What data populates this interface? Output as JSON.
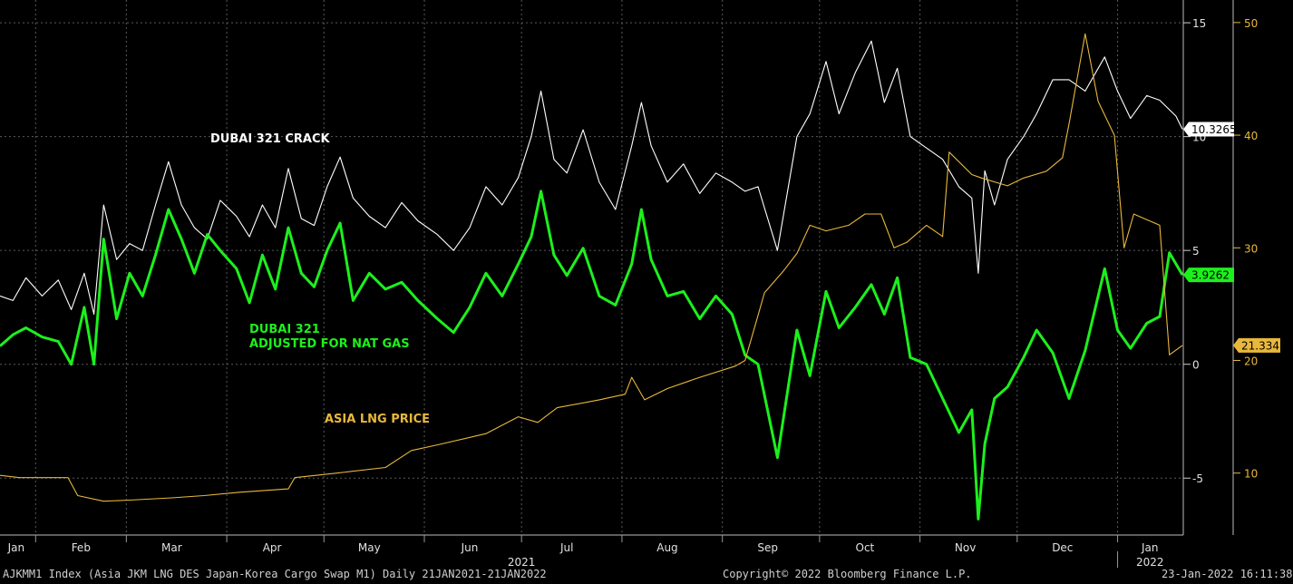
{
  "chart_data": {
    "type": "line",
    "x_months": [
      "Jan",
      "Feb",
      "Mar",
      "Apr",
      "May",
      "Jun",
      "Jul",
      "Aug",
      "Sep",
      "Oct",
      "Nov",
      "Dec",
      "Jan"
    ],
    "x_years": [
      "2021",
      "2022"
    ],
    "x_range": [
      "2021-01-21",
      "2022-01-21"
    ],
    "left_axis": {
      "ticks": [
        -5,
        0,
        5,
        10,
        15
      ],
      "range": [
        -7.5,
        16
      ]
    },
    "right_axis": {
      "ticks": [
        10,
        20,
        30,
        40,
        50
      ],
      "range": [
        4.5,
        52
      ]
    },
    "grid": true,
    "series": [
      {
        "key": "crack",
        "name": "DUBAI 321 CRACK",
        "axis": "left",
        "color": "#ffffff",
        "last_value": "10.3265",
        "points": [
          [
            "2021-01-21",
            3.0
          ],
          [
            "2021-01-25",
            2.8
          ],
          [
            "2021-01-29",
            3.8
          ],
          [
            "2021-02-03",
            3.0
          ],
          [
            "2021-02-08",
            3.7
          ],
          [
            "2021-02-12",
            2.4
          ],
          [
            "2021-02-16",
            4.0
          ],
          [
            "2021-02-19",
            2.2
          ],
          [
            "2021-02-22",
            7.0
          ],
          [
            "2021-02-26",
            4.6
          ],
          [
            "2021-03-02",
            5.3
          ],
          [
            "2021-03-06",
            5.0
          ],
          [
            "2021-03-10",
            7.0
          ],
          [
            "2021-03-14",
            8.9
          ],
          [
            "2021-03-18",
            7.0
          ],
          [
            "2021-03-22",
            6.0
          ],
          [
            "2021-03-26",
            5.5
          ],
          [
            "2021-03-30",
            7.2
          ],
          [
            "2021-04-04",
            6.5
          ],
          [
            "2021-04-08",
            5.6
          ],
          [
            "2021-04-12",
            7.0
          ],
          [
            "2021-04-16",
            6.0
          ],
          [
            "2021-04-20",
            8.6
          ],
          [
            "2021-04-24",
            6.4
          ],
          [
            "2021-04-28",
            6.1
          ],
          [
            "2021-05-02",
            7.8
          ],
          [
            "2021-05-06",
            9.1
          ],
          [
            "2021-05-10",
            7.3
          ],
          [
            "2021-05-15",
            6.5
          ],
          [
            "2021-05-20",
            6.0
          ],
          [
            "2021-05-25",
            7.1
          ],
          [
            "2021-05-30",
            6.3
          ],
          [
            "2021-06-05",
            5.7
          ],
          [
            "2021-06-10",
            5.0
          ],
          [
            "2021-06-15",
            6.0
          ],
          [
            "2021-06-20",
            7.8
          ],
          [
            "2021-06-25",
            7.0
          ],
          [
            "2021-06-30",
            8.2
          ],
          [
            "2021-07-04",
            10.0
          ],
          [
            "2021-07-07",
            12.0
          ],
          [
            "2021-07-11",
            9.0
          ],
          [
            "2021-07-15",
            8.4
          ],
          [
            "2021-07-20",
            10.3
          ],
          [
            "2021-07-25",
            8.0
          ],
          [
            "2021-07-30",
            6.8
          ],
          [
            "2021-08-04",
            9.6
          ],
          [
            "2021-08-07",
            11.5
          ],
          [
            "2021-08-10",
            9.6
          ],
          [
            "2021-08-15",
            8.0
          ],
          [
            "2021-08-20",
            8.8
          ],
          [
            "2021-08-25",
            7.5
          ],
          [
            "2021-08-30",
            8.4
          ],
          [
            "2021-09-04",
            8.0
          ],
          [
            "2021-09-08",
            7.6
          ],
          [
            "2021-09-12",
            7.8
          ],
          [
            "2021-09-18",
            5.0
          ],
          [
            "2021-09-24",
            10.0
          ],
          [
            "2021-09-28",
            11.0
          ],
          [
            "2021-10-03",
            13.3
          ],
          [
            "2021-10-07",
            11.0
          ],
          [
            "2021-10-12",
            12.8
          ],
          [
            "2021-10-17",
            14.2
          ],
          [
            "2021-10-21",
            11.5
          ],
          [
            "2021-10-25",
            13.0
          ],
          [
            "2021-10-29",
            10.0
          ],
          [
            "2021-11-03",
            9.5
          ],
          [
            "2021-11-08",
            9.0
          ],
          [
            "2021-11-13",
            7.8
          ],
          [
            "2021-11-17",
            7.3
          ],
          [
            "2021-11-19",
            4.0
          ],
          [
            "2021-11-21",
            8.5
          ],
          [
            "2021-11-24",
            7.0
          ],
          [
            "2021-11-28",
            9.0
          ],
          [
            "2021-12-03",
            10.0
          ],
          [
            "2021-12-07",
            11.0
          ],
          [
            "2021-12-12",
            12.5
          ],
          [
            "2021-12-17",
            12.5
          ],
          [
            "2021-12-22",
            12.0
          ],
          [
            "2021-12-28",
            13.5
          ],
          [
            "2022-01-01",
            12.0
          ],
          [
            "2022-01-05",
            10.8
          ],
          [
            "2022-01-10",
            11.8
          ],
          [
            "2022-01-14",
            11.6
          ],
          [
            "2022-01-19",
            10.9
          ],
          [
            "2022-01-21",
            10.3265
          ]
        ]
      },
      {
        "key": "adjusted",
        "name": "DUBAI 321\nADJUSTED FOR NAT GAS",
        "axis": "left",
        "color": "#1cf01c",
        "last_value": "3.9262",
        "points": [
          [
            "2021-01-21",
            0.8
          ],
          [
            "2021-01-25",
            1.3
          ],
          [
            "2021-01-29",
            1.6
          ],
          [
            "2021-02-03",
            1.2
          ],
          [
            "2021-02-08",
            1.0
          ],
          [
            "2021-02-12",
            0.0
          ],
          [
            "2021-02-16",
            2.5
          ],
          [
            "2021-02-19",
            0.0
          ],
          [
            "2021-02-22",
            5.5
          ],
          [
            "2021-02-26",
            2.0
          ],
          [
            "2021-03-02",
            4.0
          ],
          [
            "2021-03-06",
            3.0
          ],
          [
            "2021-03-10",
            4.8
          ],
          [
            "2021-03-14",
            6.8
          ],
          [
            "2021-03-18",
            5.5
          ],
          [
            "2021-03-22",
            4.0
          ],
          [
            "2021-03-26",
            5.7
          ],
          [
            "2021-03-30",
            5.0
          ],
          [
            "2021-04-04",
            4.2
          ],
          [
            "2021-04-08",
            2.7
          ],
          [
            "2021-04-12",
            4.8
          ],
          [
            "2021-04-16",
            3.3
          ],
          [
            "2021-04-20",
            6.0
          ],
          [
            "2021-04-24",
            4.0
          ],
          [
            "2021-04-28",
            3.4
          ],
          [
            "2021-05-02",
            5.0
          ],
          [
            "2021-05-06",
            6.2
          ],
          [
            "2021-05-10",
            2.8
          ],
          [
            "2021-05-15",
            4.0
          ],
          [
            "2021-05-20",
            3.3
          ],
          [
            "2021-05-25",
            3.6
          ],
          [
            "2021-05-30",
            2.8
          ],
          [
            "2021-06-05",
            2.0
          ],
          [
            "2021-06-10",
            1.4
          ],
          [
            "2021-06-15",
            2.5
          ],
          [
            "2021-06-20",
            4.0
          ],
          [
            "2021-06-25",
            3.0
          ],
          [
            "2021-06-30",
            4.4
          ],
          [
            "2021-07-04",
            5.6
          ],
          [
            "2021-07-07",
            7.6
          ],
          [
            "2021-07-11",
            4.8
          ],
          [
            "2021-07-15",
            3.9
          ],
          [
            "2021-07-20",
            5.1
          ],
          [
            "2021-07-25",
            3.0
          ],
          [
            "2021-07-30",
            2.6
          ],
          [
            "2021-08-04",
            4.4
          ],
          [
            "2021-08-07",
            6.8
          ],
          [
            "2021-08-10",
            4.6
          ],
          [
            "2021-08-15",
            3.0
          ],
          [
            "2021-08-20",
            3.2
          ],
          [
            "2021-08-25",
            2.0
          ],
          [
            "2021-08-30",
            3.0
          ],
          [
            "2021-09-04",
            2.2
          ],
          [
            "2021-09-08",
            0.4
          ],
          [
            "2021-09-12",
            0.0
          ],
          [
            "2021-09-18",
            -4.1
          ],
          [
            "2021-09-24",
            1.5
          ],
          [
            "2021-09-28",
            -0.5
          ],
          [
            "2021-10-03",
            3.2
          ],
          [
            "2021-10-07",
            1.6
          ],
          [
            "2021-10-12",
            2.5
          ],
          [
            "2021-10-17",
            3.5
          ],
          [
            "2021-10-21",
            2.2
          ],
          [
            "2021-10-25",
            3.8
          ],
          [
            "2021-10-29",
            0.3
          ],
          [
            "2021-11-03",
            0.0
          ],
          [
            "2021-11-08",
            -1.5
          ],
          [
            "2021-11-13",
            -3.0
          ],
          [
            "2021-11-17",
            -2.0
          ],
          [
            "2021-11-19",
            -6.8
          ],
          [
            "2021-11-21",
            -3.5
          ],
          [
            "2021-11-24",
            -1.5
          ],
          [
            "2021-11-28",
            -1.0
          ],
          [
            "2021-12-03",
            0.3
          ],
          [
            "2021-12-07",
            1.5
          ],
          [
            "2021-12-12",
            0.5
          ],
          [
            "2021-12-17",
            -1.5
          ],
          [
            "2021-12-22",
            0.6
          ],
          [
            "2021-12-28",
            4.2
          ],
          [
            "2022-01-01",
            1.5
          ],
          [
            "2022-01-05",
            0.7
          ],
          [
            "2022-01-10",
            1.8
          ],
          [
            "2022-01-14",
            2.1
          ],
          [
            "2022-01-17",
            4.9
          ],
          [
            "2022-01-21",
            3.9262
          ]
        ]
      },
      {
        "key": "lng",
        "name": "ASIA LNG PRICE",
        "axis": "right",
        "color": "#e8b83c",
        "last_value": "21.334",
        "points": [
          [
            "2021-01-21",
            9.8
          ],
          [
            "2021-01-27",
            9.6
          ],
          [
            "2021-02-05",
            9.6
          ],
          [
            "2021-02-11",
            9.6
          ],
          [
            "2021-02-14",
            8.0
          ],
          [
            "2021-02-22",
            7.5
          ],
          [
            "2021-03-02",
            7.6
          ],
          [
            "2021-03-15",
            7.8
          ],
          [
            "2021-03-25",
            8.0
          ],
          [
            "2021-04-05",
            8.3
          ],
          [
            "2021-04-20",
            8.6
          ],
          [
            "2021-04-22",
            9.6
          ],
          [
            "2021-05-05",
            10.0
          ],
          [
            "2021-05-20",
            10.5
          ],
          [
            "2021-05-28",
            12.0
          ],
          [
            "2021-06-05",
            12.5
          ],
          [
            "2021-06-20",
            13.5
          ],
          [
            "2021-06-30",
            15.0
          ],
          [
            "2021-07-06",
            14.5
          ],
          [
            "2021-07-12",
            15.8
          ],
          [
            "2021-07-25",
            16.5
          ],
          [
            "2021-08-02",
            17.0
          ],
          [
            "2021-08-04",
            18.5
          ],
          [
            "2021-08-08",
            16.5
          ],
          [
            "2021-08-15",
            17.5
          ],
          [
            "2021-08-25",
            18.5
          ],
          [
            "2021-09-05",
            19.5
          ],
          [
            "2021-09-08",
            20.0
          ],
          [
            "2021-09-12",
            24.0
          ],
          [
            "2021-09-14",
            26.0
          ],
          [
            "2021-09-20",
            28.0
          ],
          [
            "2021-09-24",
            29.5
          ],
          [
            "2021-09-28",
            32.0
          ],
          [
            "2021-10-03",
            31.5
          ],
          [
            "2021-10-10",
            32.0
          ],
          [
            "2021-10-15",
            33.0
          ],
          [
            "2021-10-20",
            33.0
          ],
          [
            "2021-10-24",
            30.0
          ],
          [
            "2021-10-28",
            30.5
          ],
          [
            "2021-11-03",
            32.0
          ],
          [
            "2021-11-08",
            31.0
          ],
          [
            "2021-11-10",
            38.5
          ],
          [
            "2021-11-17",
            36.5
          ],
          [
            "2021-11-20",
            36.2
          ],
          [
            "2021-11-28",
            35.5
          ],
          [
            "2021-12-03",
            36.2
          ],
          [
            "2021-12-10",
            36.8
          ],
          [
            "2021-12-15",
            38.0
          ],
          [
            "2021-12-17",
            41.0
          ],
          [
            "2021-12-22",
            49.0
          ],
          [
            "2021-12-26",
            43.0
          ],
          [
            "2021-12-31",
            40.0
          ],
          [
            "2022-01-03",
            30.0
          ],
          [
            "2022-01-06",
            33.0
          ],
          [
            "2022-01-10",
            32.5
          ],
          [
            "2022-01-14",
            32.0
          ],
          [
            "2022-01-17",
            20.5
          ],
          [
            "2022-01-21",
            21.334
          ]
        ]
      }
    ]
  },
  "annotations": {
    "crack_label": "DUBAI 321 CRACK",
    "adjusted_label_line1": "DUBAI 321",
    "adjusted_label_line2": "ADJUSTED FOR NAT GAS",
    "lng_label": "ASIA LNG PRICE"
  },
  "footer": {
    "left": "AJKMM1 Index (Asia JKM LNG DES Japan-Korea Cargo Swap M1)  Daily 21JAN2021-21JAN2022",
    "center": "Copyright© 2022 Bloomberg Finance L.P.",
    "right": "23-Jan-2022 16:11:38"
  }
}
